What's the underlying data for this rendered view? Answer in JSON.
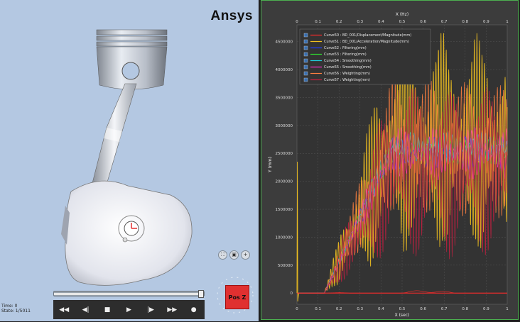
{
  "viewer": {
    "logo": "Ansys",
    "time_line1": "Time: 0",
    "time_line2": "State: 1/5011",
    "nav_cube_label": "Pos Z",
    "controls": [
      {
        "name": "rewind-icon",
        "glyph": "◀◀"
      },
      {
        "name": "step-back-icon",
        "glyph": "◀|"
      },
      {
        "name": "stop-icon",
        "glyph": "■"
      },
      {
        "name": "play-icon",
        "glyph": "▶"
      },
      {
        "name": "step-forward-icon",
        "glyph": "|▶"
      },
      {
        "name": "fast-forward-icon",
        "glyph": "▶▶"
      },
      {
        "name": "record-icon",
        "glyph": "●"
      }
    ],
    "view_tools": [
      "⛶",
      "▣",
      "+"
    ],
    "timeline_progress": 0.97
  },
  "chart_data": {
    "type": "line",
    "xlabel": "X (sec)",
    "ylabel": "Y (mm)",
    "top_xlabel": "X (Hz)",
    "xlim": [
      0,
      1
    ],
    "ylim": [
      -200000,
      4800000
    ],
    "x_ticks": [
      "0",
      "0.1",
      "0.2",
      "0.3",
      "0.4",
      "0.5",
      "0.6",
      "0.7",
      "0.8",
      "0.9",
      "1"
    ],
    "y_ticks": [
      {
        "v": 0,
        "label": "0"
      },
      {
        "v": 500000,
        "label": "500000"
      },
      {
        "v": 1000000,
        "label": "1000000"
      },
      {
        "v": 1500000,
        "label": "1500000"
      },
      {
        "v": 2000000,
        "label": "2000000"
      },
      {
        "v": 2500000,
        "label": "2500000"
      },
      {
        "v": 3000000,
        "label": "3000000"
      },
      {
        "v": 3500000,
        "label": "3500000"
      },
      {
        "v": 4000000,
        "label": "4000000"
      },
      {
        "v": 4500000,
        "label": "4500000"
      }
    ],
    "grid": true,
    "legend_position": "top-left",
    "series": [
      {
        "name": "Curve50 : BD_001/Displacement/Magnitude(mm)",
        "color": "#ff2a2a"
      },
      {
        "name": "Curve51 : BD_001/Acceleration/Magnitude(mm)",
        "color": "#f0c020"
      },
      {
        "name": "Curve52 : Filtering(mm)",
        "color": "#2040ff"
      },
      {
        "name": "Curve53 : Filtering(mm)",
        "color": "#30e030"
      },
      {
        "name": "Curve54 : Smoothing(mm)",
        "color": "#20d0e0"
      },
      {
        "name": "Curve55 : Smoothing(mm)",
        "color": "#ff30d0"
      },
      {
        "name": "Curve56 : Weighting(mm)",
        "color": "#ff8040"
      },
      {
        "name": "Curve57 : Weighting(mm)",
        "color": "#c02040"
      }
    ]
  }
}
